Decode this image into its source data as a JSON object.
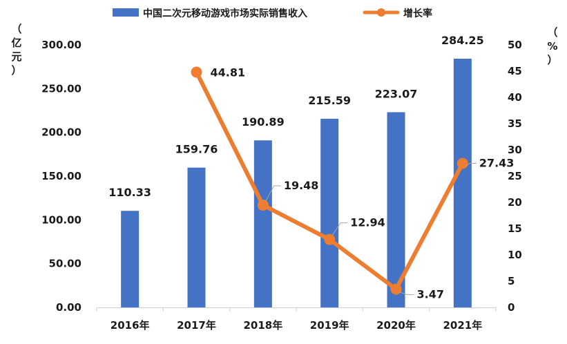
{
  "chart_data": {
    "type": "bar+line",
    "categories": [
      "2016年",
      "2017年",
      "2018年",
      "2019年",
      "2020年",
      "2021年"
    ],
    "series": [
      {
        "name": "中国二次元移动游戏市场实际销售收入",
        "type": "bar",
        "axis": "left",
        "color": "#4472C4",
        "values": [
          110.33,
          159.76,
          190.89,
          215.59,
          223.07,
          284.25
        ],
        "labels": [
          "110.33",
          "159.76",
          "190.89",
          "215.59",
          "223.07",
          "284.25"
        ]
      },
      {
        "name": "增长率",
        "type": "line",
        "axis": "right",
        "color": "#ED7D31",
        "values": [
          null,
          44.81,
          19.48,
          12.94,
          3.47,
          27.43
        ],
        "labels": [
          "",
          "44.81",
          "19.48",
          "12.94",
          "3.47",
          "27.43"
        ]
      }
    ],
    "y_left": {
      "unit_chars": [
        "（",
        "亿",
        "元",
        "）"
      ],
      "ylim": [
        0,
        300
      ],
      "ticks": [
        0,
        50,
        100,
        150,
        200,
        250,
        300
      ],
      "tick_labels": [
        "0.00",
        "50.00",
        "100.00",
        "150.00",
        "200.00",
        "250.00",
        "300.00"
      ]
    },
    "y_right": {
      "unit_chars": [
        "（",
        "%",
        "）"
      ],
      "ylim": [
        0,
        50
      ],
      "ticks": [
        0,
        5,
        10,
        15,
        20,
        25,
        30,
        35,
        40,
        45,
        50
      ],
      "tick_labels": [
        "0",
        "5",
        "10",
        "15",
        "20",
        "25",
        "30",
        "35",
        "40",
        "45",
        "50"
      ]
    },
    "legend": {
      "position": "top",
      "items": [
        {
          "label": "中国二次元移动游戏市场实际销售收入",
          "marker": "bar",
          "color": "#4472C4"
        },
        {
          "label": "增长率",
          "marker": "line",
          "color": "#ED7D31"
        }
      ]
    },
    "grid": false
  }
}
